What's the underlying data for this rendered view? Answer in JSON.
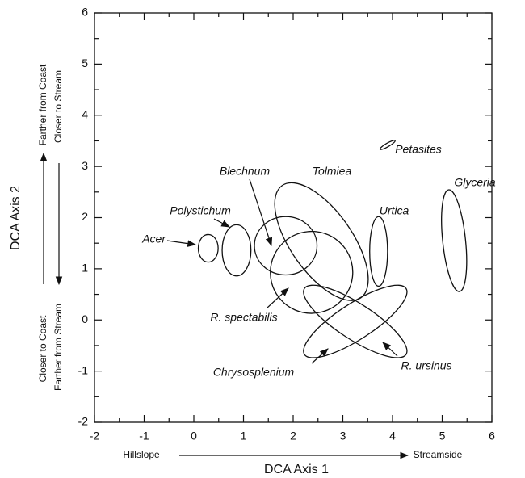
{
  "chart_data": {
    "type": "ellipse",
    "x_label": "DCA Axis 1",
    "y_label": "DCA Axis 2",
    "x_left_label": "Hillslope",
    "x_right_label": "Streamside",
    "y_top_labels": [
      "Farther from Coast",
      "Closer to Stream"
    ],
    "y_bottom_labels": [
      "Closer to Coast",
      "Farther from Stream"
    ],
    "xlim": [
      -2,
      6
    ],
    "ylim": [
      -2,
      6
    ],
    "xticks": [
      -2,
      -1,
      0,
      1,
      2,
      3,
      4,
      5,
      6
    ],
    "yticks": [
      -2,
      -1,
      0,
      1,
      2,
      3,
      4,
      5,
      6
    ],
    "x_minor_ticks": [
      -1.5,
      -0.5,
      0.5,
      1.5,
      2.5,
      3.5,
      4.5,
      5.5
    ],
    "y_minor_ticks": [
      -1.5,
      -0.5,
      0.5,
      1.5,
      2.5,
      3.5,
      4.5,
      5.5
    ],
    "color": "#111111",
    "series": [
      {
        "name": "Acer",
        "x": 0.29,
        "y": 1.4,
        "width": 0.4,
        "height": 0.54,
        "angle": 0
      },
      {
        "name": "Polystichum",
        "x": 0.86,
        "y": 1.36,
        "width": 0.58,
        "height": 1.0,
        "angle": 0
      },
      {
        "name": "Blechnum",
        "x": 1.85,
        "y": 1.45,
        "width": 1.26,
        "height": 1.14,
        "angle": 0
      },
      {
        "name": "Tolmiea",
        "x": 2.57,
        "y": 1.53,
        "width": 1.24,
        "height": 2.68,
        "angle": 35
      },
      {
        "name": "Urtica",
        "x": 3.72,
        "y": 1.34,
        "width": 0.36,
        "height": 1.36,
        "angle": 0
      },
      {
        "name": "Glyceria",
        "x": 5.24,
        "y": 1.55,
        "width": 0.46,
        "height": 2.0,
        "angle": 6
      },
      {
        "name": "Petasites",
        "x": 3.9,
        "y": 3.42,
        "width": 0.35,
        "height": 0.07,
        "angle": 30
      },
      {
        "name": "R. spectabilis",
        "x": 2.37,
        "y": 0.93,
        "width": 1.66,
        "height": 1.6,
        "angle": 15
      },
      {
        "name": "Chrysosplenium",
        "x": 3.25,
        "y": -0.03,
        "width": 2.44,
        "height": 0.7,
        "angle": 33
      },
      {
        "name": "R. ursinus",
        "x": 3.25,
        "y": -0.03,
        "width": 2.44,
        "height": 0.7,
        "angle": -33
      }
    ]
  }
}
